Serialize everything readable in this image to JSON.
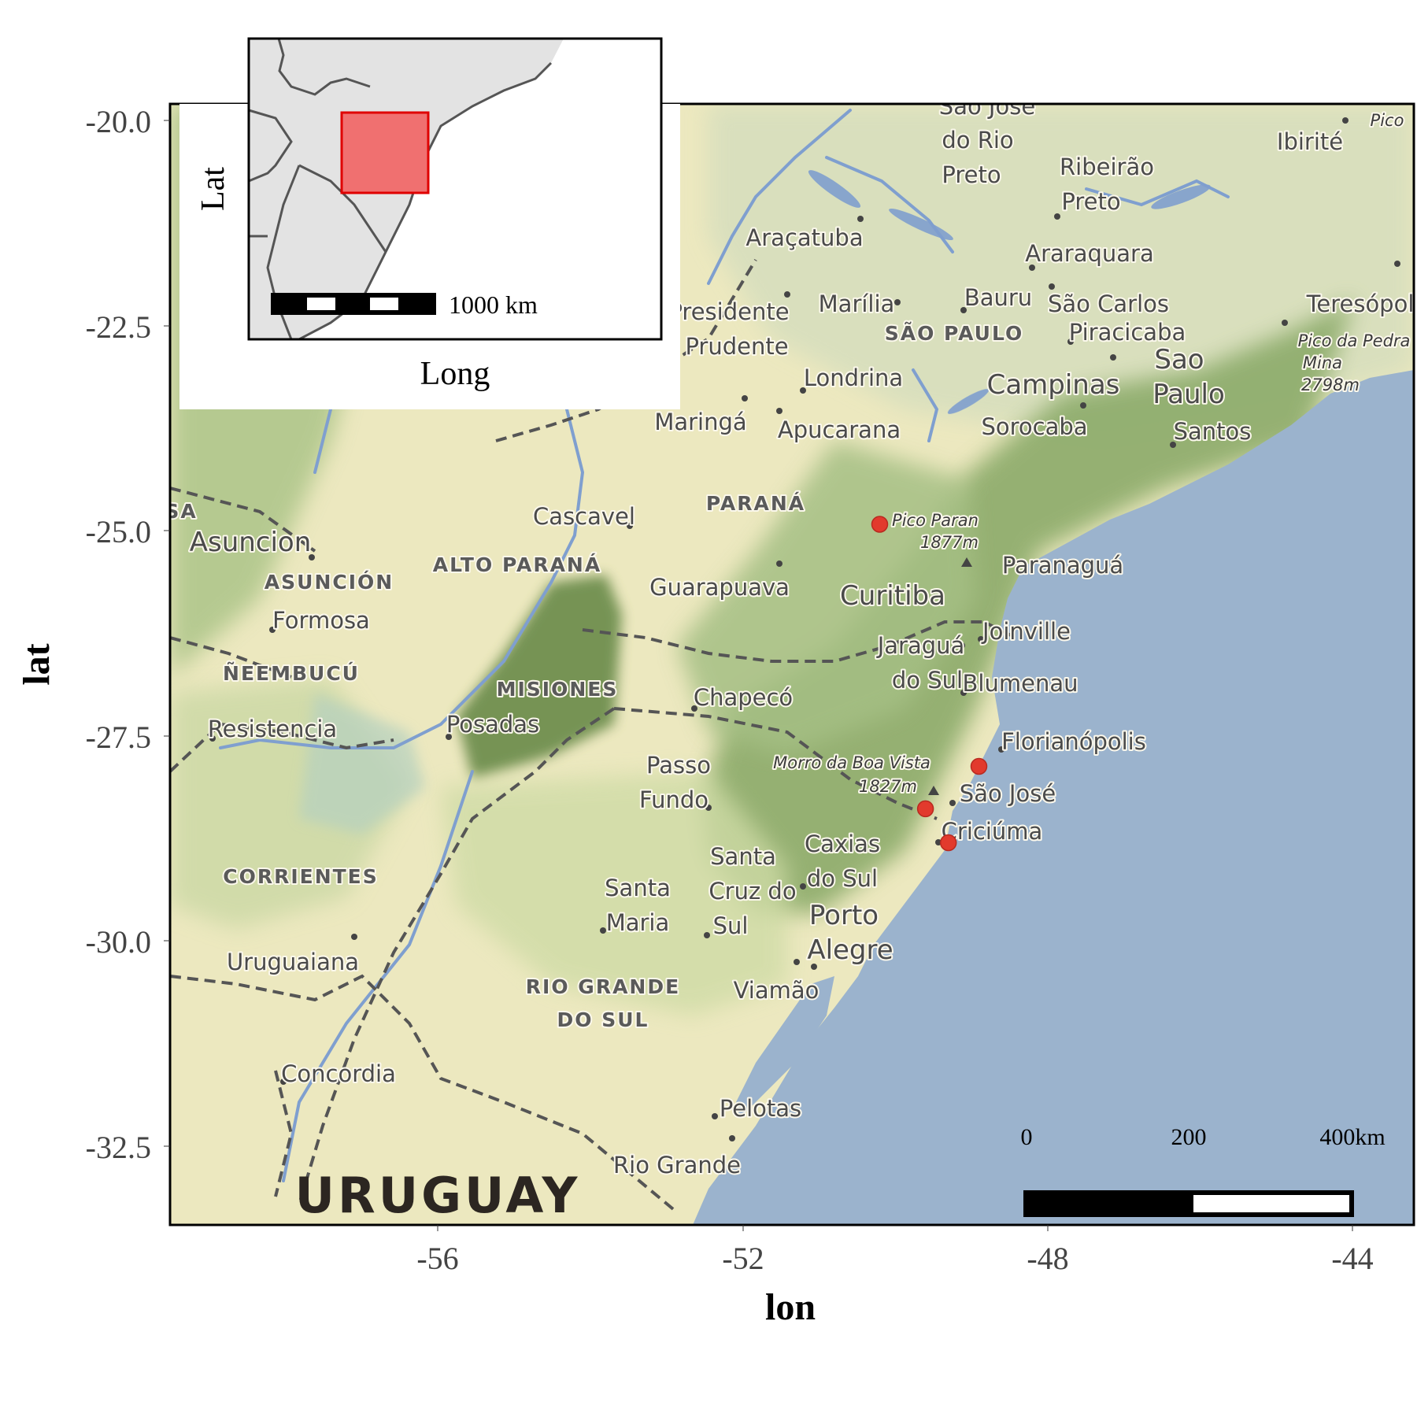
{
  "map": {
    "colors": {
      "sea": "#9bb3cd",
      "land_low": "#ece8bf",
      "land_mid": "#c9d79c",
      "land_high": "#7b9b5b",
      "river": "#7f9fcf",
      "border": "#555555",
      "site_marker": "#e23a2d",
      "inset_highlight": "#f07070",
      "inset_land": "#e3e3e3"
    },
    "axes": {
      "x_title": "lon",
      "y_title": "lat",
      "x_ticks": [
        "-56",
        "-52",
        "-48",
        "-44"
      ],
      "y_ticks": [
        "-20.0",
        "-22.5",
        "-25.0",
        "-27.5",
        "-30.0",
        "-32.5"
      ],
      "x_range": [
        -59.5,
        -43.2
      ],
      "y_range": [
        -33.0,
        -19.8
      ]
    },
    "country_label": "URUGUAY",
    "region_labels": [
      "SÃO PAULO",
      "PARANÁ",
      "ALTO PARANÁ",
      "ASUNCIÓN",
      "ÑEEMBUCÚ",
      "MISIONES",
      "CORRIENTES",
      "RIO GRANDE",
      "DO SUL"
    ],
    "city_labels": [
      "São José",
      "do Rio",
      "Preto",
      "Ribeirão",
      "Preto",
      "Pico",
      "Ibirité",
      "Araçatuba",
      "Araraquara",
      "Presidente",
      "Prudente",
      "Marília",
      "Bauru",
      "São Carlos",
      "Piracicaba",
      "Teresópol",
      "Campinas",
      "Sao",
      "Paulo",
      "Londrina",
      "Maringá",
      "Apucarana",
      "Sorocaba",
      "Santos",
      "Cascavel",
      "Asuncion",
      "Paranaguá",
      "Guarapuava",
      "Curitiba",
      "Formosa",
      "Joinville",
      "Jaraguá",
      "do Sul",
      "Blumenau",
      "Chapecó",
      "Posadas",
      "Resistencia",
      "Florianópolis",
      "Passo",
      "Fundo",
      "São José",
      "Criciúma",
      "Caxias",
      "do Sul",
      "Santa",
      "Cruz do",
      "Sul",
      "Santa",
      "Maria",
      "Porto",
      "Alegre",
      "Uruguaiana",
      "Viamão",
      "Concordia",
      "Pelotas",
      "Rio Grande",
      "SA"
    ],
    "peak_labels": [
      "Pico da Pedra",
      "Mina",
      "2798m",
      "Pico Paran",
      "1877m",
      "Morro da Boa Vista",
      "1827m"
    ],
    "sites": [
      {
        "lon": -50.2,
        "lat": -24.75
      },
      {
        "lon": -48.9,
        "lat": -27.6
      },
      {
        "lon": -49.6,
        "lat": -28.1
      },
      {
        "lon": -49.3,
        "lat": -28.5
      }
    ],
    "scale_bar": {
      "labels": [
        "0",
        "200",
        "400km"
      ]
    }
  },
  "inset": {
    "x_title": "Long",
    "y_title": "Lat",
    "scale_label": "1000 km"
  }
}
